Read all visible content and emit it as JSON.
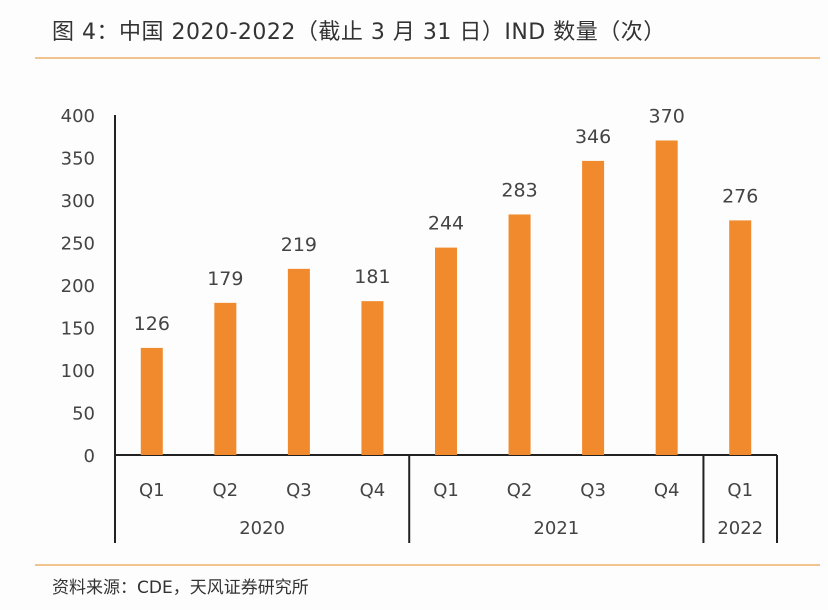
{
  "title": "图 4：中国 2020-2022（截止 3 月 31 日）IND 数量（次）",
  "source": "资料来源：CDE，天风证券研究所",
  "colors": {
    "bar": "#f08a2c",
    "rule": "#f1c48f",
    "axis": "#222222"
  },
  "chart_data": {
    "type": "bar",
    "title": "图 4：中国 2020-2022（截止 3 月 31 日）IND 数量（次）",
    "categories": [
      "Q1",
      "Q2",
      "Q3",
      "Q4",
      "Q1",
      "Q2",
      "Q3",
      "Q4",
      "Q1"
    ],
    "groups": [
      {
        "label": "2020",
        "count": 4
      },
      {
        "label": "2021",
        "count": 4
      },
      {
        "label": "2022",
        "count": 1
      }
    ],
    "values": [
      126,
      179,
      219,
      181,
      244,
      283,
      346,
      370,
      276
    ],
    "ylim": [
      0,
      400
    ],
    "yticks": [
      0,
      50,
      100,
      150,
      200,
      250,
      300,
      350,
      400
    ],
    "grid": false,
    "data_labels": true
  }
}
